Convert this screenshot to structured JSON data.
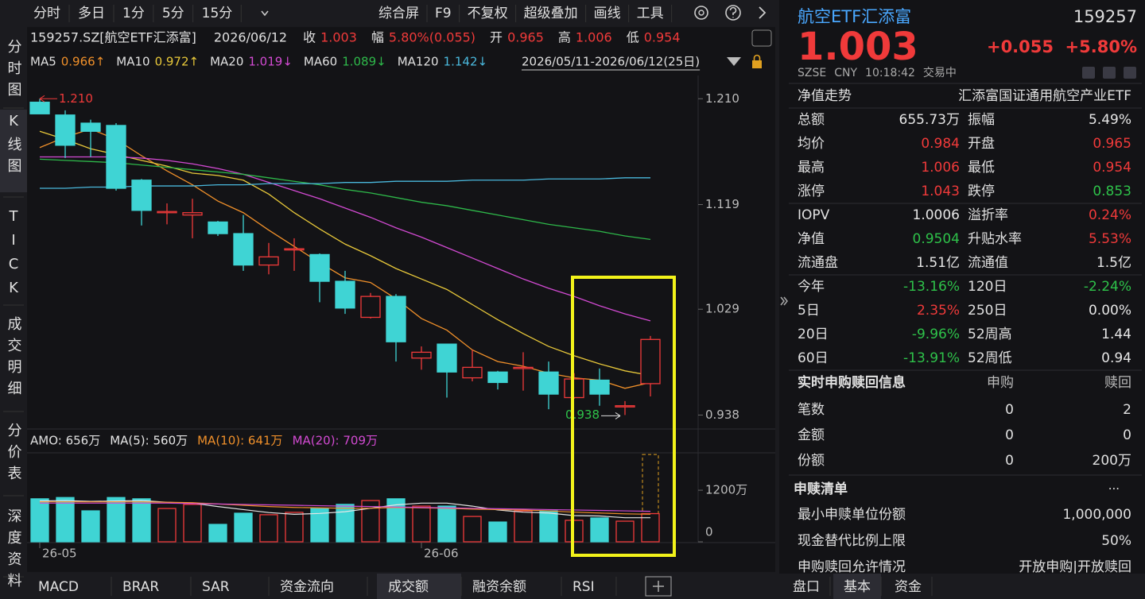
{
  "toolbar": {
    "periods": [
      "分时",
      "多日",
      "1分",
      "5分",
      "15分"
    ],
    "tools": [
      "综合屏",
      "F9",
      "不复权",
      "超级叠加",
      "画线",
      "工具"
    ]
  },
  "side_tabs": {
    "items": [
      "分时图",
      "K线图",
      "TICK",
      "成交明细",
      "分价表",
      "深度资料"
    ],
    "selected": 1
  },
  "quote_line": {
    "security": "159257.SZ[航空ETF汇添富]",
    "date": "2026/06/12",
    "items": [
      {
        "label": "收",
        "value": "1.003",
        "color": "#f03a3a"
      },
      {
        "label": "幅",
        "value": "5.80%(0.055)",
        "color": "#f03a3a"
      },
      {
        "label": "开",
        "value": "0.965",
        "color": "#f03a3a"
      },
      {
        "label": "高",
        "value": "1.006",
        "color": "#f03a3a"
      },
      {
        "label": "低",
        "value": "0.954",
        "color": "#f03a3a"
      }
    ]
  },
  "chart_data": {
    "type": "candlestick",
    "categories": [
      "26-05",
      null,
      null,
      null,
      null,
      null,
      null,
      null,
      null,
      null,
      null,
      null,
      null,
      null,
      null,
      "26-06",
      null,
      null,
      null,
      null,
      null,
      null,
      null,
      null,
      null
    ],
    "open": [
      1.207,
      1.196,
      1.189,
      1.187,
      1.14,
      1.112,
      1.11,
      1.104,
      1.094,
      1.067,
      1.08,
      1.076,
      1.053,
      1.022,
      1.04,
      0.987,
      0.999,
      0.97,
      0.975,
      0.978,
      0.975,
      0.953,
      0.968,
      0.945,
      0.965
    ],
    "high": [
      1.21,
      1.2,
      1.192,
      1.189,
      1.141,
      1.12,
      1.124,
      1.105,
      1.11,
      1.086,
      1.09,
      1.077,
      1.062,
      1.043,
      1.042,
      0.997,
      0.999,
      0.994,
      0.976,
      0.992,
      0.984,
      0.974,
      0.978,
      0.95,
      1.006
    ],
    "low": [
      1.197,
      1.159,
      1.16,
      1.131,
      1.101,
      1.102,
      1.09,
      1.092,
      1.062,
      1.059,
      1.062,
      1.035,
      1.025,
      1.021,
      0.984,
      0.977,
      0.953,
      0.967,
      0.96,
      0.959,
      0.943,
      0.952,
      0.946,
      0.938,
      0.954
    ],
    "close": [
      1.197,
      1.17,
      1.182,
      1.133,
      1.114,
      1.113,
      1.112,
      1.094,
      1.067,
      1.074,
      1.081,
      1.053,
      1.03,
      1.04,
      1.001,
      0.992,
      0.975,
      0.979,
      0.966,
      0.979,
      0.956,
      0.969,
      0.956,
      0.946,
      1.003
    ],
    "up_color": "#f03a3a",
    "down_color": "#3fd4d4",
    "ylim": [
      0.926,
      1.23
    ],
    "yticks": [
      {
        "value": 1.21,
        "label": "1.210"
      },
      1.119,
      1.029,
      0.938
    ],
    "max_label": "1.210",
    "max_index": 0,
    "min_label": "0.938",
    "min_index": 23,
    "range_label": "2026/05/11-2026/06/12(25日)",
    "series": [
      {
        "name": "MA5",
        "legend_value": "0.966↑",
        "color": "#f0902a",
        "values": [
          1.168,
          1.177,
          1.184,
          1.175,
          1.161,
          1.148,
          1.136,
          1.122,
          1.112,
          1.097,
          1.083,
          1.069,
          1.056,
          1.052,
          1.038,
          1.021,
          1.011,
          0.994,
          0.984,
          0.98,
          0.974,
          0.97,
          0.968,
          0.961,
          0.966
        ]
      },
      {
        "name": "MA10",
        "legend_value": "0.972↑",
        "color": "#e8c83a",
        "values": [
          1.182,
          1.175,
          1.167,
          1.162,
          1.157,
          1.152,
          1.146,
          1.144,
          1.14,
          1.128,
          1.112,
          1.098,
          1.085,
          1.075,
          1.064,
          1.055,
          1.046,
          1.033,
          1.02,
          1.008,
          0.997,
          0.989,
          0.982,
          0.976,
          0.972
        ]
      },
      {
        "name": "MA20",
        "legend_value": "1.019↓",
        "color": "#d24ad2",
        "values": [
          1.16,
          1.16,
          1.16,
          1.16,
          1.159,
          1.157,
          1.154,
          1.15,
          1.145,
          1.138,
          1.131,
          1.124,
          1.116,
          1.108,
          1.099,
          1.091,
          1.082,
          1.073,
          1.064,
          1.055,
          1.047,
          1.04,
          1.032,
          1.025,
          1.019
        ]
      },
      {
        "name": "MA60",
        "legend_value": "1.089↓",
        "color": "#2eb84a",
        "values": [
          1.158,
          1.157,
          1.156,
          1.155,
          1.153,
          1.151,
          1.149,
          1.147,
          1.145,
          1.142,
          1.139,
          1.136,
          1.132,
          1.129,
          1.125,
          1.121,
          1.118,
          1.114,
          1.11,
          1.106,
          1.102,
          1.099,
          1.096,
          1.092,
          1.089
        ]
      },
      {
        "name": "MA120",
        "legend_value": "1.142↓",
        "color": "#4ab8dc",
        "values": [
          1.133,
          1.133,
          1.134,
          1.134,
          1.135,
          1.135,
          1.135,
          1.136,
          1.136,
          1.137,
          1.137,
          1.137,
          1.138,
          1.138,
          1.139,
          1.139,
          1.139,
          1.14,
          1.14,
          1.14,
          1.141,
          1.141,
          1.141,
          1.142,
          1.142
        ]
      }
    ],
    "volume": {
      "amo_label": "AMO: 656万",
      "values": [
        1000,
        1030,
        720,
        1030,
        1000,
        775,
        870,
        405,
        665,
        630,
        685,
        775,
        870,
        960,
        1000,
        830,
        830,
        590,
        460,
        720,
        720,
        500,
        555,
        480,
        656
      ],
      "estimated_full_day": 2030,
      "estimate_color": "#e0a020",
      "ylim": [
        0,
        2070
      ],
      "yticks": [
        {
          "value": 1200,
          "label": "1200万"
        },
        0
      ],
      "series": [
        {
          "legend": "MA(5): 560万",
          "color": "#e6e6e6",
          "values": [
            950,
            960,
            940,
            950,
            960,
            920,
            900,
            820,
            750,
            680,
            640,
            660,
            700,
            780,
            860,
            900,
            900,
            830,
            740,
            690,
            670,
            610,
            600,
            560,
            560
          ]
        },
        {
          "legend": "MA(10): 641万",
          "color": "#f0902a",
          "values": [
            930,
            930,
            930,
            930,
            930,
            920,
            910,
            880,
            850,
            820,
            800,
            790,
            780,
            780,
            800,
            790,
            780,
            760,
            750,
            740,
            720,
            690,
            670,
            650,
            641
          ]
        },
        {
          "legend": "MA(20): 709万",
          "color": "#d24ad2",
          "values": [
            900,
            900,
            900,
            900,
            900,
            900,
            890,
            880,
            870,
            860,
            850,
            840,
            830,
            820,
            810,
            800,
            790,
            780,
            770,
            760,
            750,
            740,
            730,
            720,
            709
          ]
        }
      ]
    }
  },
  "bottom_tabs": {
    "items": [
      "MACD",
      "BRAR",
      "SAR",
      "资金流向",
      "成交额",
      "融资余额",
      "RSI"
    ],
    "selected": 4
  },
  "quote_panel": {
    "name": "航空ETF汇添富",
    "code": "159257",
    "price": "1.003",
    "change": "+0.055",
    "change_pct": "+5.80%",
    "exchange": "SZSE",
    "currency": "CNY",
    "time": "10:18:42",
    "status": "交易中",
    "nav_trend": {
      "label": "净值走势",
      "value": "汇添富国证通用航空产业ETF"
    },
    "groups": [
      [
        [
          {
            "label": "总额",
            "value": "655.73万",
            "color": "#e6e6e6"
          },
          {
            "label": "振幅",
            "value": "5.49%",
            "color": "#e6e6e6"
          }
        ],
        [
          {
            "label": "均价",
            "value": "0.984",
            "color": "#f03a3a"
          },
          {
            "label": "开盘",
            "value": "0.965",
            "color": "#f03a3a"
          }
        ],
        [
          {
            "label": "最高",
            "value": "1.006",
            "color": "#f03a3a"
          },
          {
            "label": "最低",
            "value": "0.954",
            "color": "#f03a3a"
          }
        ],
        [
          {
            "label": "涨停",
            "value": "1.043",
            "color": "#f03a3a"
          },
          {
            "label": "跌停",
            "value": "0.853",
            "color": "#2ec24a"
          }
        ]
      ],
      [
        [
          {
            "label": "IOPV",
            "value": "1.0006",
            "color": "#e6e6e6"
          },
          {
            "label": "溢折率",
            "value": "0.24%",
            "color": "#f03a3a"
          }
        ],
        [
          {
            "label": "净值",
            "value": "0.9504",
            "color": "#2ec24a"
          },
          {
            "label": "升贴水率",
            "value": "5.53%",
            "color": "#f03a3a"
          }
        ],
        [
          {
            "label": "流通盘",
            "value": "1.51亿",
            "color": "#e6e6e6"
          },
          {
            "label": "流通值",
            "value": "1.5亿",
            "color": "#e6e6e6"
          }
        ]
      ],
      [
        [
          {
            "label": "今年",
            "value": "-13.16%",
            "color": "#2ec24a"
          },
          {
            "label": "120日",
            "value": "-2.24%",
            "color": "#2ec24a"
          }
        ],
        [
          {
            "label": "5日",
            "value": "2.35%",
            "color": "#f03a3a"
          },
          {
            "label": "250日",
            "value": "0.00%",
            "color": "#e6e6e6"
          }
        ],
        [
          {
            "label": "20日",
            "value": "-9.96%",
            "color": "#2ec24a"
          },
          {
            "label": "52周高",
            "value": "1.44",
            "color": "#e6e6e6"
          }
        ],
        [
          {
            "label": "60日",
            "value": "-13.91%",
            "color": "#2ec24a"
          },
          {
            "label": "52周低",
            "value": "0.94",
            "color": "#e6e6e6"
          }
        ]
      ]
    ],
    "creation_redemption": {
      "title": "实时申购赎回信息",
      "columns": [
        "申购",
        "赎回"
      ],
      "rows": [
        {
          "label": "笔数",
          "values": [
            "0",
            "2"
          ]
        },
        {
          "label": "金额",
          "values": [
            "0",
            "0"
          ]
        },
        {
          "label": "份额",
          "values": [
            "0",
            "200万"
          ]
        }
      ]
    },
    "basket": {
      "title": "申赎清单",
      "more": "···",
      "rows": [
        {
          "label": "最小申赎单位份额",
          "value": "1,000,000"
        },
        {
          "label": "现金替代比例上限",
          "value": "50%"
        },
        {
          "label": "申购赎回允许情况",
          "value": "开放申购|开放赎回"
        }
      ]
    },
    "tabs": {
      "items": [
        "盘口",
        "基本",
        "资金"
      ],
      "selected": 1
    }
  }
}
